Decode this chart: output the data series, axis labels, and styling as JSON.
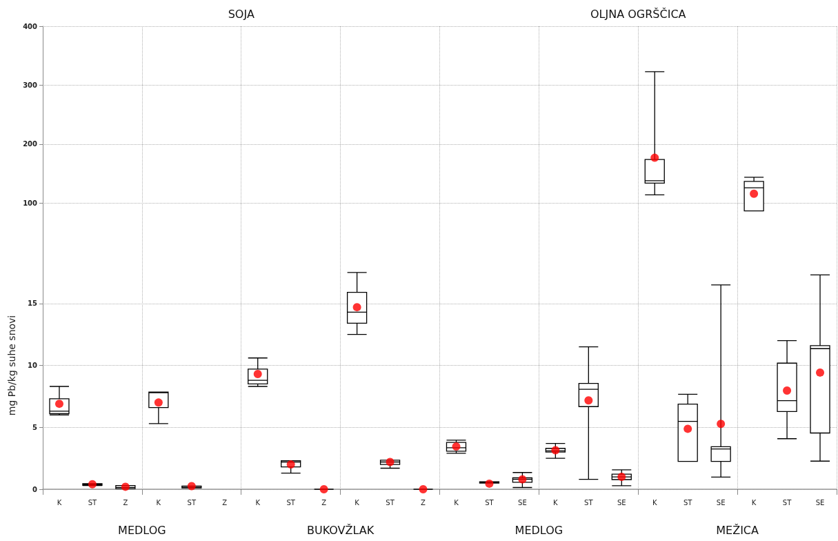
{
  "chart_data": [
    {
      "type": "box",
      "annotations": [
        "SOJA",
        "OLJNA OGRŠČICA"
      ],
      "categories": [
        null,
        null,
        null,
        null,
        null,
        null,
        null,
        null,
        null,
        null,
        null,
        null,
        null,
        null,
        null,
        null,
        null,
        null,
        null,
        null,
        null,
        null,
        null,
        null
      ],
      "ylim": [
        35,
        400
      ],
      "yticks": [
        100,
        200,
        300,
        400
      ],
      "grid": true,
      "tick_labels": "y",
      "series": [
        {
          "color": "#000000",
          "boxes": [
            null,
            null,
            null,
            null,
            null,
            null,
            null,
            null,
            null,
            null,
            null,
            null,
            null,
            null,
            null,
            null,
            null,
            null,
            {
              "low": 114,
              "q1": 134,
              "median": 138,
              "q3": 174,
              "high": 323,
              "mean": 177
            },
            null,
            null,
            {
              "low": 87,
              "q1": 87,
              "median": 126,
              "q3": 137,
              "high": 144,
              "mean": 116
            },
            null,
            null
          ]
        }
      ]
    },
    {
      "type": "box",
      "ylabel": "mg Pb/kg suhe snovi",
      "annotations": [
        "MEDLOG",
        "BUKOVŽLAK",
        "MEDLOG",
        "MEŽICA"
      ],
      "categories": [
        "K",
        "ST",
        "Z",
        "K",
        "ST",
        "Z",
        "K",
        "ST",
        "Z",
        "K",
        "ST",
        "Z",
        "K",
        "ST",
        "SE",
        "K",
        "ST",
        "SE",
        "K",
        "ST",
        "SE",
        "K",
        "ST",
        "SE"
      ],
      "ylim": [
        0,
        20
      ],
      "yticks": [
        0,
        5,
        10,
        15
      ],
      "grid": true,
      "series": [
        {
          "color": "#000000",
          "boxes": [
            {
              "low": 6.0,
              "q1": 6.1,
              "median": 6.3,
              "q3": 7.3,
              "high": 8.3,
              "mean": 6.9
            },
            {
              "low": 0.3,
              "q1": 0.32,
              "median": 0.38,
              "q3": 0.45,
              "high": 0.45,
              "mean": 0.4
            },
            {
              "low": 0.05,
              "q1": 0.05,
              "median": 0.15,
              "q3": 0.3,
              "high": 0.3,
              "mean": 0.2
            },
            {
              "low": 5.3,
              "q1": 6.6,
              "median": 7.8,
              "q3": 7.85,
              "high": 7.85,
              "mean": 7.0
            },
            {
              "low": 0.1,
              "q1": 0.1,
              "median": 0.15,
              "q3": 0.25,
              "high": 0.25,
              "mean": 0.25
            },
            null,
            {
              "low": 8.3,
              "q1": 8.5,
              "median": 8.8,
              "q3": 9.7,
              "high": 10.6,
              "mean": 9.3
            },
            {
              "low": 1.3,
              "q1": 1.8,
              "median": 2.2,
              "q3": 2.3,
              "high": 2.3,
              "mean": 2.0
            },
            {
              "low": 0,
              "q1": 0,
              "median": 0,
              "q3": 0,
              "high": 0,
              "mean": 0
            },
            {
              "low": 12.5,
              "q1": 13.4,
              "median": 14.3,
              "q3": 15.9,
              "high": 17.5,
              "mean": 14.7
            },
            {
              "low": 1.7,
              "q1": 2.0,
              "median": 2.2,
              "q3": 2.35,
              "high": 2.35,
              "mean": 2.2
            },
            {
              "low": 0,
              "q1": 0,
              "median": 0,
              "q3": 0,
              "high": 0,
              "mean": 0
            },
            {
              "low": 2.9,
              "q1": 3.07,
              "median": 3.35,
              "q3": 3.78,
              "high": 3.96,
              "mean": 3.45
            },
            {
              "low": 0.5,
              "q1": 0.5,
              "median": 0.55,
              "q3": 0.6,
              "high": 0.6,
              "mean": 0.45
            },
            {
              "low": 0.14,
              "q1": 0.56,
              "median": 0.8,
              "q3": 0.92,
              "high": 1.35,
              "mean": 0.8
            },
            {
              "low": 2.5,
              "q1": 3.0,
              "median": 3.1,
              "q3": 3.3,
              "high": 3.7,
              "mean": 3.15
            },
            {
              "low": 0.8,
              "q1": 6.67,
              "median": 8.07,
              "q3": 8.55,
              "high": 11.5,
              "mean": 7.17
            },
            {
              "low": 0.28,
              "q1": 0.78,
              "median": 1.0,
              "q3": 1.22,
              "high": 1.57,
              "mean": 1.0
            },
            null,
            {
              "low": 2.25,
              "q1": 2.25,
              "median": 5.48,
              "q3": 6.87,
              "high": 7.67,
              "mean": 4.88
            },
            {
              "low": 0.98,
              "q1": 2.25,
              "median": 3.25,
              "q3": 3.43,
              "high": 16.5,
              "mean": 5.28
            },
            null,
            {
              "low": 4.08,
              "q1": 6.27,
              "median": 7.15,
              "q3": 10.18,
              "high": 12.0,
              "mean": 7.97
            },
            {
              "low": 2.27,
              "q1": 4.54,
              "median": 11.35,
              "q3": 11.6,
              "high": 17.3,
              "mean": 9.42
            }
          ]
        }
      ]
    }
  ]
}
